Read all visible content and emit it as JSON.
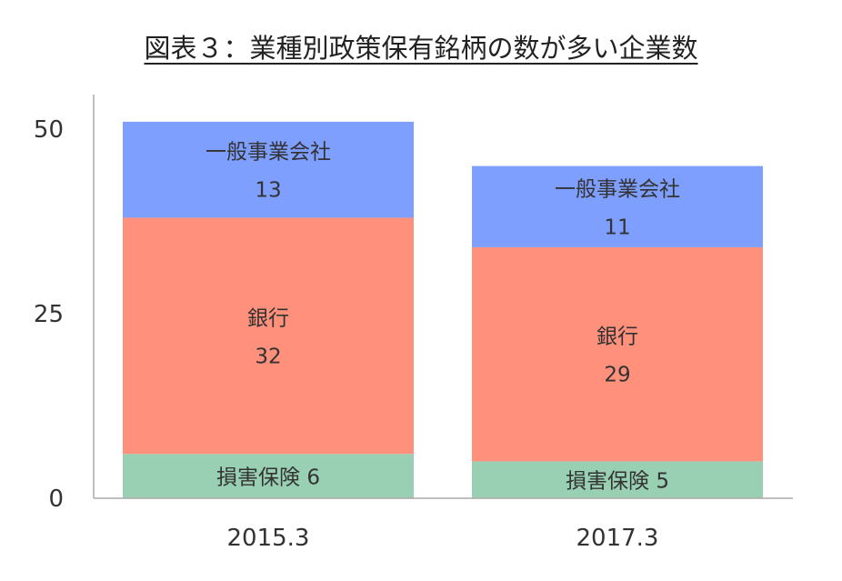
{
  "chart_data": {
    "type": "bar",
    "stacked": true,
    "title": "図表３：業種別政策保有銘柄の数が多い企業数",
    "categories": [
      "2015.3",
      "2017.3"
    ],
    "series": [
      {
        "name": "損害保険",
        "values": [
          6,
          5
        ],
        "color": "#99d0b3",
        "label_style": "inline"
      },
      {
        "name": "銀行",
        "values": [
          32,
          29
        ],
        "color": "#ff907b",
        "label_style": "two-line"
      },
      {
        "name": "一般事業会社",
        "values": [
          13,
          11
        ],
        "color": "#7f9fff",
        "label_style": "two-line"
      }
    ],
    "yticks": [
      "0",
      "25",
      "50"
    ],
    "ylim": [
      0,
      50
    ],
    "grid": false,
    "legend": "none"
  }
}
